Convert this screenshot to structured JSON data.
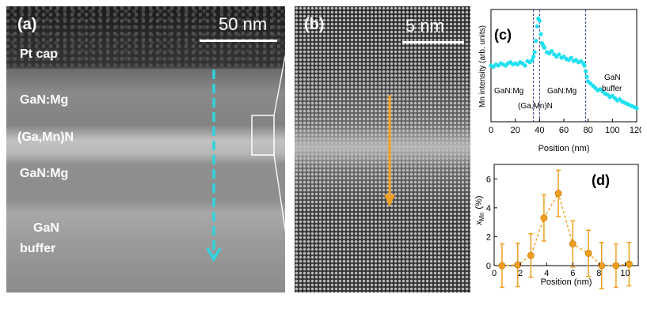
{
  "panel_a": {
    "label": "(a)",
    "scalebar": "50 nm",
    "layers": {
      "pt_cap": "Pt cap",
      "gan_mg_top": "GaN:Mg",
      "gamnn": "(Ga,Mn)N",
      "gan_mg_bottom": "GaN:Mg",
      "gan_buffer_line1": "GaN",
      "gan_buffer_line2": "buffer"
    },
    "colors": {
      "arrow": "#2fd4df"
    }
  },
  "panel_b": {
    "label": "(b)",
    "scalebar": "5 nm",
    "colors": {
      "arrow": "#f0a020"
    }
  },
  "chart_data": [
    {
      "type": "scatter",
      "panel_label": "(c)",
      "xlabel": "Position (nm)",
      "ylabel": "Mn intensity (arb. units)",
      "xlim": [
        0,
        120
      ],
      "ylim": [
        0,
        1
      ],
      "xticks": [
        "0",
        "20",
        "40",
        "60",
        "80",
        "100",
        "120"
      ],
      "color": "#1fe0f0",
      "vlines": [
        35,
        40,
        78
      ],
      "region_labels": [
        "GaN:Mg",
        "(Ga,Mn)N",
        "GaN:Mg",
        "GaN",
        "buffer"
      ],
      "x": [
        0,
        2,
        4,
        6,
        8,
        10,
        12,
        14,
        16,
        18,
        20,
        22,
        24,
        26,
        28,
        30,
        32,
        34,
        35,
        36,
        37,
        38,
        39,
        40,
        41,
        42,
        43,
        44,
        46,
        48,
        50,
        52,
        54,
        56,
        58,
        60,
        62,
        64,
        66,
        68,
        70,
        72,
        74,
        76,
        77,
        78,
        79,
        80,
        82,
        84,
        86,
        88,
        90,
        92,
        94,
        96,
        98,
        100,
        102,
        104,
        106,
        108,
        110,
        112,
        114,
        116,
        118,
        120
      ],
      "values": [
        0.5,
        0.49,
        0.51,
        0.5,
        0.52,
        0.51,
        0.5,
        0.52,
        0.53,
        0.51,
        0.52,
        0.51,
        0.53,
        0.52,
        0.5,
        0.54,
        0.53,
        0.55,
        0.58,
        0.62,
        0.72,
        0.85,
        0.92,
        0.9,
        0.78,
        0.7,
        0.68,
        0.66,
        0.62,
        0.61,
        0.63,
        0.6,
        0.58,
        0.6,
        0.57,
        0.58,
        0.56,
        0.55,
        0.57,
        0.54,
        0.55,
        0.53,
        0.54,
        0.52,
        0.5,
        0.45,
        0.4,
        0.36,
        0.34,
        0.32,
        0.3,
        0.28,
        0.29,
        0.27,
        0.25,
        0.24,
        0.22,
        0.23,
        0.21,
        0.19,
        0.2,
        0.18,
        0.17,
        0.16,
        0.15,
        0.14,
        0.13,
        0.12
      ]
    },
    {
      "type": "scatter",
      "panel_label": "(d)",
      "xlabel": "Position (nm)",
      "ylabel": "x",
      "ylabel_sub": "Mn",
      "ylabel_unit": "(%)",
      "xlim": [
        0,
        11
      ],
      "ylim": [
        0,
        7
      ],
      "xticks": [
        "0",
        "2",
        "4",
        "6",
        "8",
        "10"
      ],
      "yticks": [
        "0",
        "2",
        "4",
        "6"
      ],
      "color": "#f0a020",
      "x": [
        0.6,
        1.8,
        2.8,
        3.8,
        4.9,
        6.0,
        7.2,
        8.2,
        9.3,
        10.3
      ],
      "values": [
        0.0,
        0.05,
        0.7,
        3.3,
        5.0,
        1.5,
        0.85,
        0.0,
        0.0,
        0.1
      ],
      "errors": [
        1.5,
        1.5,
        1.5,
        1.6,
        1.6,
        1.6,
        1.6,
        1.6,
        1.5,
        1.5
      ]
    }
  ]
}
